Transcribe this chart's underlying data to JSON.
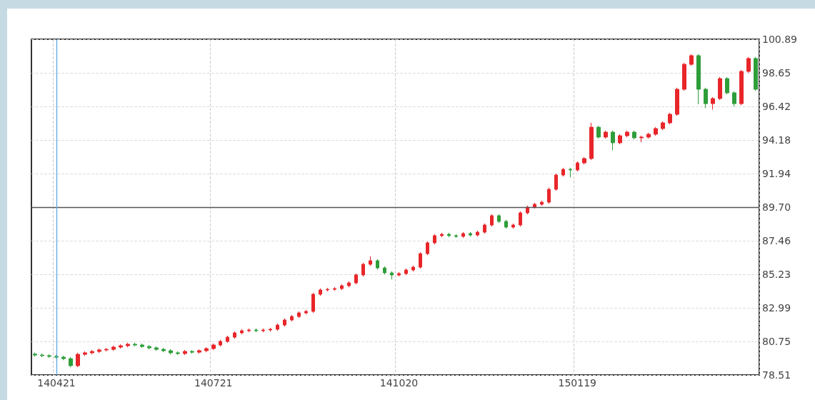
{
  "chart_data": {
    "type": "candlestick",
    "categories": [
      null,
      null,
      null,
      "140421",
      null,
      null,
      null,
      null,
      null,
      null,
      null,
      null,
      null,
      null,
      null,
      null,
      null,
      null,
      null,
      null,
      null,
      null,
      null,
      null,
      null,
      "140721",
      null,
      null,
      null,
      null,
      null,
      null,
      null,
      null,
      null,
      null,
      null,
      null,
      null,
      null,
      null,
      null,
      null,
      null,
      null,
      null,
      null,
      null,
      null,
      null,
      null,
      "141020",
      null,
      null,
      null,
      null,
      null,
      null,
      null,
      null,
      null,
      null,
      null,
      null,
      null,
      null,
      null,
      null,
      null,
      null,
      null,
      null,
      null,
      null,
      null,
      null,
      "150119",
      null,
      null,
      null,
      null,
      null,
      null,
      null,
      null,
      null,
      null,
      null,
      null,
      null,
      null,
      null,
      null,
      null,
      null,
      null,
      null,
      null,
      null,
      null,
      null,
      null
    ],
    "ohlc": [
      [
        79.9,
        80.0,
        79.74,
        79.84
      ],
      [
        79.84,
        79.94,
        79.7,
        79.8
      ],
      [
        79.8,
        79.9,
        79.65,
        79.75
      ],
      [
        79.75,
        79.85,
        79.6,
        79.7
      ],
      [
        79.7,
        79.8,
        79.5,
        79.6
      ],
      [
        79.6,
        79.7,
        79.03,
        79.13
      ],
      [
        79.13,
        79.99,
        79.03,
        79.89
      ],
      [
        79.89,
        80.09,
        79.79,
        79.99
      ],
      [
        79.99,
        80.18,
        79.89,
        80.08
      ],
      [
        80.08,
        80.28,
        79.98,
        80.18
      ],
      [
        80.18,
        80.32,
        80.08,
        80.22
      ],
      [
        80.22,
        80.47,
        80.12,
        80.37
      ],
      [
        80.37,
        80.56,
        80.27,
        80.46
      ],
      [
        80.46,
        80.66,
        80.36,
        80.56
      ],
      [
        80.56,
        80.66,
        80.41,
        80.51
      ],
      [
        80.51,
        80.61,
        80.31,
        80.41
      ],
      [
        80.41,
        80.51,
        80.22,
        80.32
      ],
      [
        80.32,
        80.42,
        80.12,
        80.22
      ],
      [
        80.22,
        80.32,
        80.03,
        80.13
      ],
      [
        80.13,
        80.23,
        79.89,
        79.99
      ],
      [
        79.99,
        80.09,
        79.84,
        79.94
      ],
      [
        79.94,
        80.18,
        79.84,
        80.08
      ],
      [
        80.08,
        80.18,
        79.93,
        80.03
      ],
      [
        80.03,
        80.23,
        79.93,
        80.13
      ],
      [
        80.13,
        80.37,
        80.03,
        80.27
      ],
      [
        80.27,
        80.61,
        80.17,
        80.51
      ],
      [
        80.51,
        80.85,
        80.41,
        80.75
      ],
      [
        80.75,
        81.13,
        80.65,
        81.03
      ],
      [
        81.03,
        81.42,
        80.93,
        81.32
      ],
      [
        81.32,
        81.56,
        81.22,
        81.46
      ],
      [
        81.46,
        81.61,
        81.36,
        81.51
      ],
      [
        81.51,
        81.61,
        81.36,
        81.46
      ],
      [
        81.46,
        81.61,
        81.36,
        81.51
      ],
      [
        81.51,
        81.66,
        81.41,
        81.56
      ],
      [
        81.56,
        81.94,
        81.46,
        81.84
      ],
      [
        81.84,
        82.28,
        81.74,
        82.18
      ],
      [
        82.18,
        82.51,
        82.08,
        82.41
      ],
      [
        82.41,
        82.75,
        82.31,
        82.65
      ],
      [
        82.65,
        82.85,
        82.55,
        82.75
      ],
      [
        82.75,
        83.99,
        82.65,
        83.89
      ],
      [
        83.89,
        84.28,
        83.79,
        84.18
      ],
      [
        84.18,
        84.32,
        84.08,
        84.22
      ],
      [
        84.22,
        84.37,
        84.12,
        84.27
      ],
      [
        84.27,
        84.56,
        84.17,
        84.46
      ],
      [
        84.46,
        84.75,
        84.36,
        84.65
      ],
      [
        84.65,
        85.28,
        84.55,
        85.18
      ],
      [
        85.18,
        85.99,
        85.08,
        85.89
      ],
      [
        85.89,
        86.43,
        85.79,
        86.13
      ],
      [
        86.13,
        86.23,
        85.55,
        85.65
      ],
      [
        85.65,
        85.75,
        85.22,
        85.32
      ],
      [
        85.32,
        85.42,
        84.88,
        85.18
      ],
      [
        85.18,
        85.37,
        85.08,
        85.27
      ],
      [
        85.27,
        85.61,
        85.17,
        85.51
      ],
      [
        85.51,
        85.8,
        85.41,
        85.7
      ],
      [
        85.7,
        86.7,
        85.6,
        86.6
      ],
      [
        86.6,
        87.42,
        86.5,
        87.32
      ],
      [
        87.32,
        87.9,
        87.22,
        87.8
      ],
      [
        87.8,
        87.99,
        87.7,
        87.89
      ],
      [
        87.89,
        87.99,
        87.7,
        87.8
      ],
      [
        87.8,
        87.9,
        87.65,
        87.75
      ],
      [
        87.75,
        88.04,
        87.65,
        87.94
      ],
      [
        87.94,
        88.04,
        87.74,
        87.84
      ],
      [
        87.84,
        88.13,
        87.74,
        88.03
      ],
      [
        88.03,
        88.61,
        87.93,
        88.51
      ],
      [
        88.51,
        89.23,
        88.41,
        89.13
      ],
      [
        89.13,
        89.23,
        88.65,
        88.75
      ],
      [
        88.75,
        88.85,
        88.27,
        88.37
      ],
      [
        88.37,
        88.61,
        88.27,
        88.51
      ],
      [
        88.51,
        89.42,
        88.41,
        89.32
      ],
      [
        89.32,
        89.8,
        89.22,
        89.7
      ],
      [
        89.7,
        89.99,
        89.6,
        89.89
      ],
      [
        89.89,
        90.13,
        89.79,
        90.03
      ],
      [
        90.03,
        90.99,
        89.93,
        90.89
      ],
      [
        90.89,
        91.94,
        90.79,
        91.84
      ],
      [
        91.84,
        92.32,
        91.74,
        92.22
      ],
      [
        92.22,
        92.32,
        91.68,
        92.18
      ],
      [
        92.18,
        92.75,
        92.08,
        92.65
      ],
      [
        92.65,
        93.04,
        92.55,
        92.94
      ],
      [
        92.94,
        95.33,
        92.84,
        95.03
      ],
      [
        95.03,
        95.13,
        94.27,
        94.37
      ],
      [
        94.37,
        94.8,
        94.27,
        94.7
      ],
      [
        94.7,
        94.8,
        93.49,
        93.99
      ],
      [
        93.99,
        94.56,
        93.89,
        94.46
      ],
      [
        94.46,
        94.8,
        94.36,
        94.7
      ],
      [
        94.7,
        94.8,
        94.22,
        94.32
      ],
      [
        94.32,
        94.47,
        94.02,
        94.37
      ],
      [
        94.37,
        94.66,
        94.27,
        94.56
      ],
      [
        94.56,
        95.04,
        94.46,
        94.94
      ],
      [
        94.94,
        95.42,
        94.84,
        95.32
      ],
      [
        95.32,
        95.99,
        95.22,
        95.89
      ],
      [
        95.89,
        97.66,
        95.79,
        97.56
      ],
      [
        97.56,
        99.32,
        97.46,
        99.22
      ],
      [
        99.22,
        99.9,
        99.12,
        99.8
      ],
      [
        99.8,
        99.9,
        96.56,
        97.56
      ],
      [
        97.56,
        97.66,
        96.3,
        96.6
      ],
      [
        96.6,
        97.04,
        96.2,
        96.94
      ],
      [
        96.94,
        98.37,
        96.84,
        98.27
      ],
      [
        98.27,
        98.37,
        97.22,
        97.32
      ],
      [
        97.32,
        97.42,
        96.4,
        96.6
      ],
      [
        96.6,
        98.85,
        96.5,
        98.75
      ],
      [
        98.75,
        99.71,
        98.65,
        99.61
      ],
      [
        99.61,
        99.71,
        97.46,
        97.56
      ]
    ],
    "colors": [
      "#2e9e3a",
      "#2e9e3a",
      "#2e9e3a",
      "#2e9e3a",
      "#2e9e3a",
      "#2e9e3a",
      "#e8262a",
      "#e8262a",
      "#e8262a",
      "#e8262a",
      "#e8262a",
      "#e8262a",
      "#e8262a",
      "#e8262a",
      "#2e9e3a",
      "#2e9e3a",
      "#2e9e3a",
      "#2e9e3a",
      "#2e9e3a",
      "#2e9e3a",
      "#2e9e3a",
      "#e8262a",
      "#2e9e3a",
      "#e8262a",
      "#e8262a",
      "#e8262a",
      "#e8262a",
      "#e8262a",
      "#e8262a",
      "#e8262a",
      "#e8262a",
      "#2e9e3a",
      "#e8262a",
      "#e8262a",
      "#e8262a",
      "#e8262a",
      "#e8262a",
      "#e8262a",
      "#e8262a",
      "#e8262a",
      "#e8262a",
      "#e8262a",
      "#e8262a",
      "#e8262a",
      "#e8262a",
      "#e8262a",
      "#e8262a",
      "#e8262a",
      "#2e9e3a",
      "#2e9e3a",
      "#2e9e3a",
      "#e8262a",
      "#e8262a",
      "#e8262a",
      "#e8262a",
      "#e8262a",
      "#e8262a",
      "#e8262a",
      "#2e9e3a",
      "#2e9e3a",
      "#e8262a",
      "#2e9e3a",
      "#e8262a",
      "#e8262a",
      "#e8262a",
      "#2e9e3a",
      "#2e9e3a",
      "#e8262a",
      "#e8262a",
      "#e8262a",
      "#e8262a",
      "#e8262a",
      "#e8262a",
      "#e8262a",
      "#e8262a",
      "#2e9e3a",
      "#e8262a",
      "#e8262a",
      "#e8262a",
      "#2e9e3a",
      "#e8262a",
      "#2e9e3a",
      "#e8262a",
      "#e8262a",
      "#2e9e3a",
      "#e8262a",
      "#e8262a",
      "#e8262a",
      "#e8262a",
      "#e8262a",
      "#e8262a",
      "#e8262a",
      "#e8262a",
      "#2e9e3a",
      "#2e9e3a",
      "#e8262a",
      "#e8262a",
      "#2e9e3a",
      "#2e9e3a",
      "#e8262a",
      "#e8262a",
      "#2e9e3a"
    ],
    "ylim": [
      78.51,
      100.89
    ],
    "yticks": [
      78.51,
      80.75,
      82.99,
      85.23,
      87.46,
      {
        "value": 89.7,
        "label": "89.70"
      },
      91.94,
      94.18,
      96.42,
      98.65,
      100.89
    ],
    "ref_lines": [
      {
        "axis": "y",
        "value": 89.7,
        "color": "#555555"
      },
      {
        "axis": "x",
        "value": "140421",
        "color": "#5aa9e6"
      }
    ],
    "grid": true
  }
}
